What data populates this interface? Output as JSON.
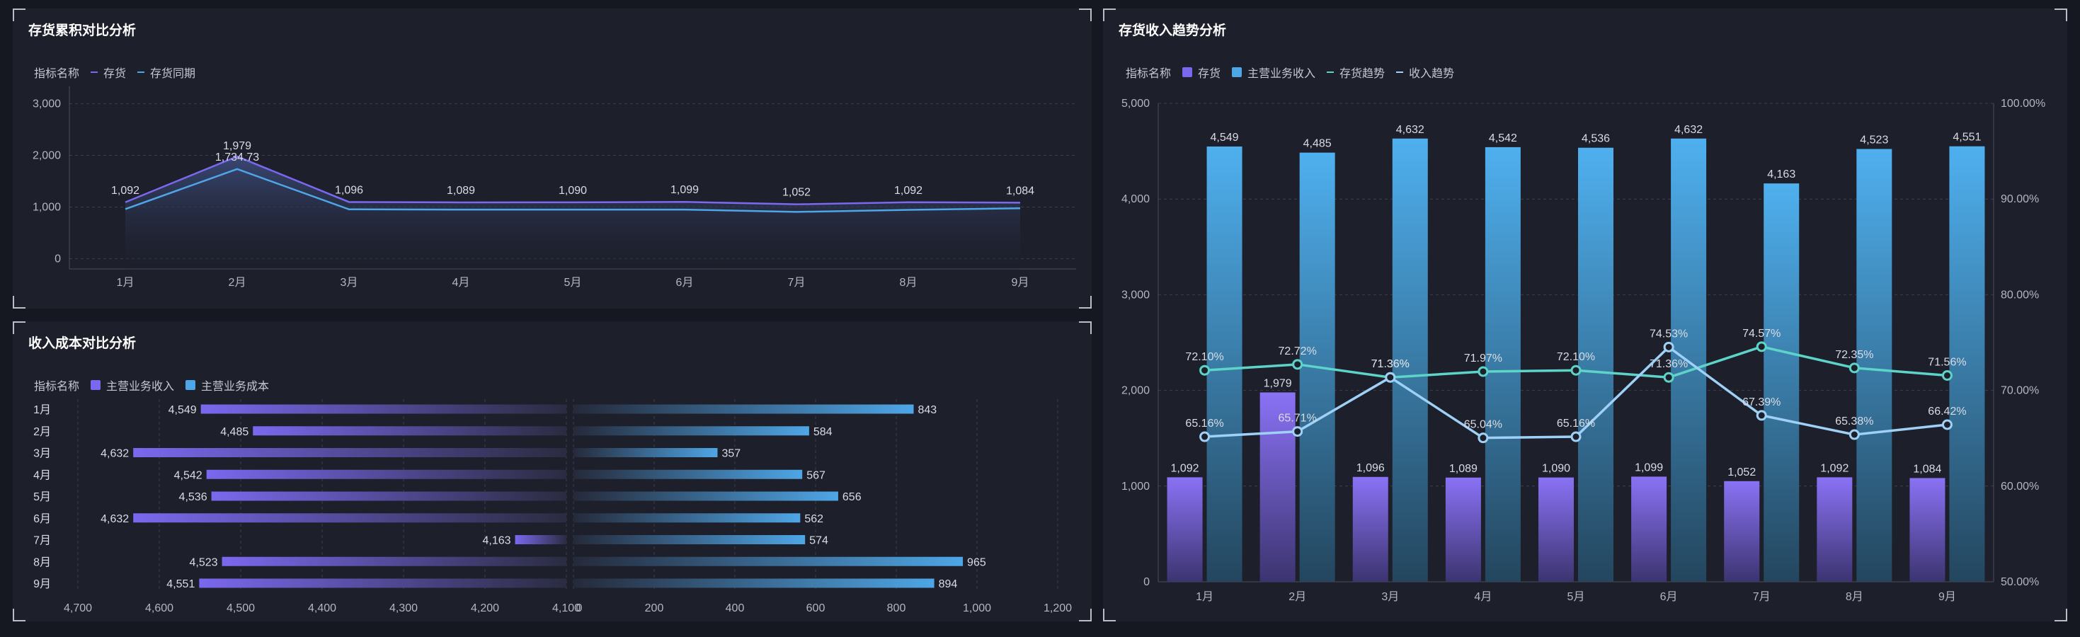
{
  "colors": {
    "purple": "#7b68ee",
    "blue": "#4ea6e6",
    "teal": "#5ed3c8",
    "lightblue": "#9fd0f5",
    "grid": "#3a3e4e",
    "axis_text": "#b3b7c3",
    "label_text": "#d9dce4"
  },
  "panel1": {
    "title": "存货累积对比分析",
    "legend_label": "指标名称",
    "legend": [
      {
        "name": "存货",
        "color": "#7b68ee"
      },
      {
        "name": "存货同期",
        "color": "#4ea6e6"
      }
    ]
  },
  "panel2": {
    "title": "收入成本对比分析",
    "legend_label": "指标名称",
    "legend": [
      {
        "name": "主营业务收入",
        "color": "#7b68ee"
      },
      {
        "name": "主营业务成本",
        "color": "#4ea6e6"
      }
    ]
  },
  "panel3": {
    "title": "存货收入趋势分析",
    "legend_label": "指标名称",
    "legend": [
      {
        "name": "存货",
        "kind": "box",
        "color": "#7b68ee"
      },
      {
        "name": "主营业务收入",
        "kind": "box",
        "color": "#4ea6e6"
      },
      {
        "name": "存货趋势",
        "kind": "line",
        "color": "#5ed3c8"
      },
      {
        "name": "收入趋势",
        "kind": "line",
        "color": "#9fd0f5"
      }
    ]
  },
  "chart_data": [
    {
      "id": "area",
      "type": "area",
      "categories": [
        "1月",
        "2月",
        "3月",
        "4月",
        "5月",
        "6月",
        "7月",
        "8月",
        "9月"
      ],
      "series": [
        {
          "name": "存货",
          "values": [
            1092,
            1979,
            1096,
            1089,
            1090,
            1099,
            1052,
            1092,
            1084
          ]
        },
        {
          "name": "存货同期",
          "values": [
            960,
            1734.73,
            955,
            950,
            950,
            950,
            905,
            945,
            975
          ]
        }
      ],
      "yticks": [
        0,
        1000,
        2000,
        3000
      ],
      "yticklabels": [
        "0",
        "1,000",
        "2,000",
        "3,000"
      ],
      "ylim": [
        -200,
        3200
      ],
      "labels": [
        "1,092",
        "1,979",
        "1,096",
        "1,089",
        "1,090",
        "1,099",
        "1,052",
        "1,092",
        "1,084"
      ],
      "extra_label": "1,734.73"
    },
    {
      "id": "butterfly",
      "type": "bar",
      "categories": [
        "1月",
        "2月",
        "3月",
        "4月",
        "5月",
        "6月",
        "7月",
        "8月",
        "9月"
      ],
      "series": [
        {
          "name": "主营业务收入",
          "values": [
            4549,
            4485,
            4632,
            4542,
            4536,
            4632,
            4163,
            4523,
            4551
          ],
          "labels": [
            "4,549",
            "4,485",
            "4,632",
            "4,542",
            "4,536",
            "4,632",
            "4,163",
            "4,523",
            "4,551"
          ]
        },
        {
          "name": "主营业务成本",
          "values": [
            843,
            584,
            357,
            567,
            656,
            562,
            574,
            965,
            894
          ],
          "labels": [
            "843",
            "584",
            "357",
            "567",
            "656",
            "562",
            "574",
            "965",
            "894"
          ]
        }
      ],
      "left_axis": {
        "min": 4100,
        "max": 4700,
        "ticks": [
          4700,
          4600,
          4500,
          4400,
          4300,
          4200,
          4100
        ],
        "ticklabels": [
          "4,700",
          "4,600",
          "4,500",
          "4,400",
          "4,300",
          "4,200",
          "4,100"
        ]
      },
      "right_axis": {
        "min": 0,
        "max": 1200,
        "ticks": [
          0,
          200,
          400,
          600,
          800,
          1000,
          1200
        ],
        "ticklabels": [
          "0",
          "200",
          "400",
          "600",
          "800",
          "1,000",
          "1,200"
        ]
      }
    },
    {
      "id": "combo",
      "type": "bar",
      "categories": [
        "1月",
        "2月",
        "3月",
        "4月",
        "5月",
        "6月",
        "7月",
        "8月",
        "9月"
      ],
      "series": [
        {
          "name": "存货",
          "kind": "bar",
          "values": [
            1092,
            1979,
            1096,
            1089,
            1090,
            1099,
            1052,
            1092,
            1084
          ],
          "labels": [
            "1,092",
            "1,979",
            "1,096",
            "1,089",
            "1,090",
            "1,099",
            "1,052",
            "1,092",
            "1,084"
          ]
        },
        {
          "name": "主营业务收入",
          "kind": "bar",
          "values": [
            4549,
            4485,
            4632,
            4542,
            4536,
            4632,
            4163,
            4523,
            4551
          ],
          "labels": [
            "4,549",
            "4,485",
            "4,632",
            "4,542",
            "4,536",
            "4,632",
            "4,163",
            "4,523",
            "4,551"
          ]
        },
        {
          "name": "存货趋势",
          "kind": "line",
          "axis": "right",
          "values": [
            72.1,
            72.72,
            71.36,
            71.97,
            72.1,
            71.36,
            74.57,
            72.35,
            71.56
          ],
          "labels": [
            "72.10%",
            "72.72%",
            "71.36%",
            "71.97%",
            "72.10%",
            "71.36%",
            "74.57%",
            "72.35%",
            "71.56%"
          ]
        },
        {
          "name": "收入趋势",
          "kind": "line",
          "axis": "right",
          "values": [
            65.16,
            65.71,
            71.36,
            65.04,
            65.16,
            74.53,
            67.39,
            65.38,
            66.42
          ],
          "labels": [
            "65.16%",
            "65.71%",
            "71.36%",
            "65.04%",
            "65.16%",
            "74.53%",
            "67.39%",
            "65.38%",
            "66.42%"
          ]
        }
      ],
      "left_axis": {
        "min": 0,
        "max": 5000,
        "ticks": [
          0,
          1000,
          2000,
          3000,
          4000,
          5000
        ],
        "ticklabels": [
          "0",
          "1,000",
          "2,000",
          "3,000",
          "4,000",
          "5,000"
        ]
      },
      "right_axis": {
        "min": 50,
        "max": 100,
        "ticks": [
          50,
          60,
          70,
          80,
          90,
          100
        ],
        "ticklabels": [
          "50.00%",
          "60.00%",
          "70.00%",
          "80.00%",
          "90.00%",
          "100.00%"
        ]
      }
    }
  ]
}
